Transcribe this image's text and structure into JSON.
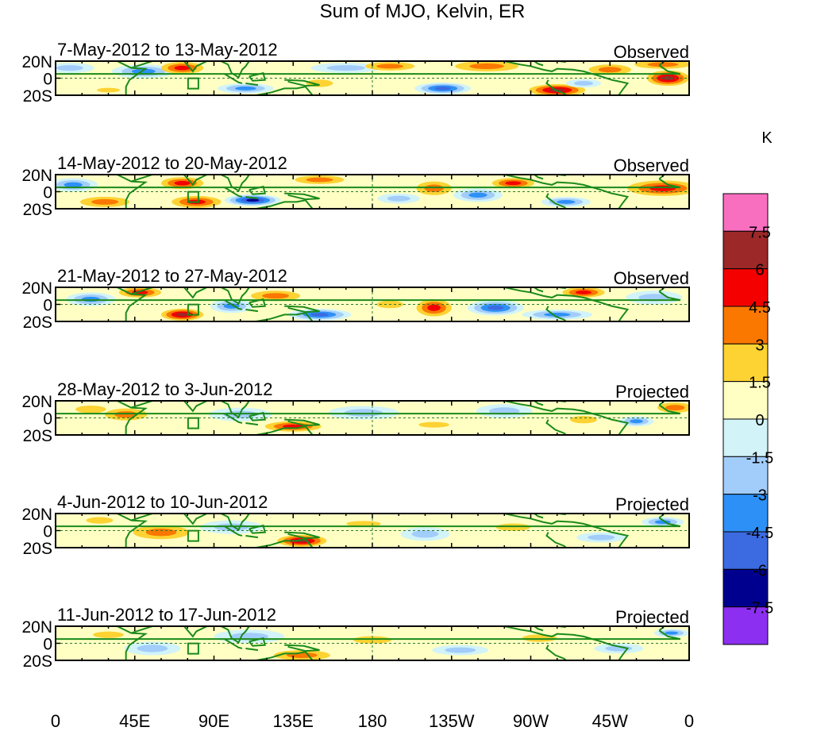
{
  "chart_data": {
    "type": "heatmap",
    "title": "Sum of MJO, Kelvin, ER",
    "units": "K",
    "y_ticks": [
      "20N",
      "0",
      "20S"
    ],
    "x_ticks": [
      "0",
      "45E",
      "90E",
      "135E",
      "180",
      "135W",
      "90W",
      "45W",
      "0"
    ],
    "x_range_deg": [
      0,
      360
    ],
    "lat_range_deg": [
      -20,
      20
    ],
    "colorbar": {
      "labels": [
        "7.5",
        "6",
        "4.5",
        "3",
        "1.5",
        "0",
        "-1.5",
        "-3",
        "-4.5",
        "-6",
        "-7.5"
      ],
      "colors": [
        "#f96fbf",
        "#9c2828",
        "#f40000",
        "#fa7800",
        "#fdd233",
        "#ffffc4",
        "#d2f3f8",
        "#a2cdfa",
        "#2d90f6",
        "#3c6ae0",
        "#00008f",
        "#8c2ff0"
      ]
    },
    "panels": [
      {
        "period": "7-May-2012 to 13-May-2012",
        "status": "Observed"
      },
      {
        "period": "14-May-2012 to 20-May-2012",
        "status": "Observed"
      },
      {
        "period": "21-May-2012 to 27-May-2012",
        "status": "Observed"
      },
      {
        "period": "28-May-2012 to 3-Jun-2012",
        "status": "Projected"
      },
      {
        "period": "4-Jun-2012 to 10-Jun-2012",
        "status": "Projected"
      },
      {
        "period": "11-Jun-2012 to 17-Jun-2012",
        "status": "Projected"
      }
    ]
  }
}
